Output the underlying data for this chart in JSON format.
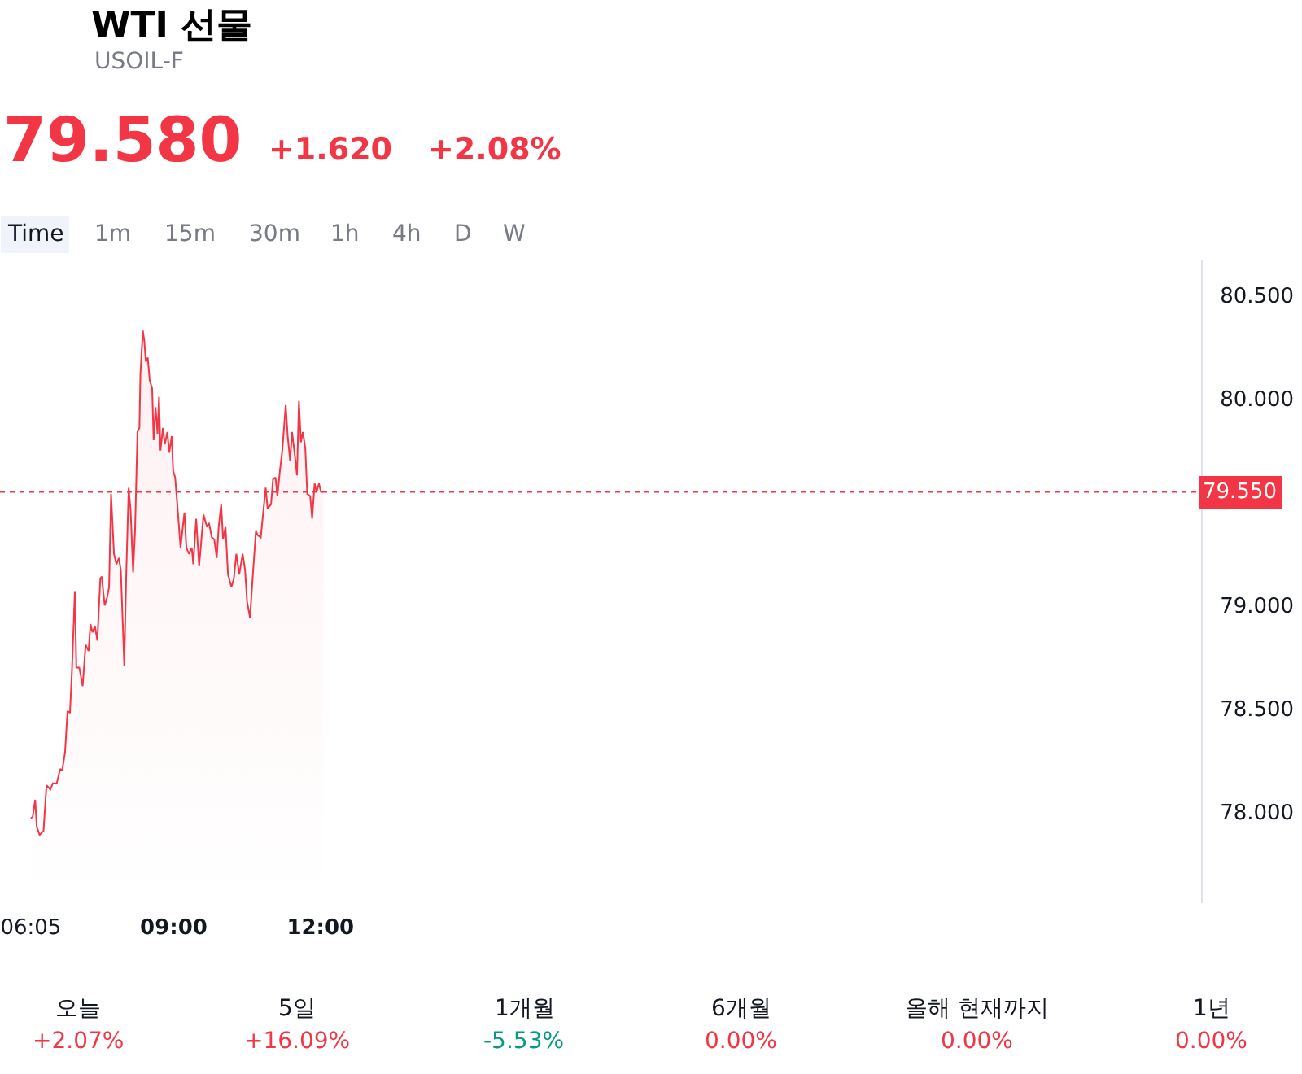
{
  "chart_data": {
    "type": "area",
    "title": "WTI 선물",
    "subtitle": "USOIL-F",
    "annotations": [
      "79.580",
      "+1.620",
      "+2.08%",
      "Time",
      "1m",
      "15m",
      "30m",
      "1h",
      "4h",
      "D",
      "W",
      "오늘",
      "5일",
      "1개월",
      "6개월",
      "올해 현재까지",
      "1년",
      "+2.07%",
      "+16.09%",
      "-5.53%",
      "0.00%",
      "0.00%",
      "0.00%"
    ],
    "x": [
      6.08,
      6.12,
      6.17,
      6.2,
      6.26,
      6.34,
      6.4,
      6.48,
      6.53,
      6.61,
      6.68,
      6.72,
      6.78,
      6.83,
      6.88,
      6.92,
      6.98,
      7.01,
      7.07,
      7.11,
      7.14,
      7.2,
      7.26,
      7.3,
      7.34,
      7.39,
      7.44,
      7.5,
      7.53,
      7.59,
      7.64,
      7.68,
      7.72,
      7.78,
      7.83,
      7.88,
      7.92,
      7.99,
      8.03,
      8.08,
      8.12,
      8.17,
      8.21,
      8.26,
      8.3,
      8.32,
      8.37,
      8.4,
      8.43,
      8.47,
      8.51,
      8.56,
      8.59,
      8.63,
      8.67,
      8.7,
      8.73,
      8.78,
      8.82,
      8.87,
      8.91,
      8.96,
      8.99,
      9.03,
      9.09,
      9.14,
      9.22,
      9.26,
      9.31,
      9.37,
      9.4,
      9.46,
      9.52,
      9.61,
      9.68,
      9.72,
      9.78,
      9.83,
      9.88,
      9.92,
      9.97,
      10.01,
      10.06,
      10.11,
      10.18,
      10.23,
      10.28,
      10.34,
      10.41,
      10.46,
      10.5,
      10.56,
      10.61,
      10.68,
      10.72,
      10.78,
      10.83,
      10.88,
      10.92,
      10.99,
      11.03,
      11.08,
      11.12,
      11.17,
      11.22,
      11.29,
      11.33,
      11.38,
      11.42,
      11.48,
      11.52,
      11.56,
      11.6,
      11.64,
      11.69,
      11.73,
      11.79,
      11.83,
      11.88,
      11.92,
      11.97,
      12.01,
      12.06
    ],
    "series": [
      {
        "color": "#f23645",
        "values": [
          77.97,
          77.98,
          78.06,
          77.93,
          77.89,
          77.91,
          78.13,
          78.11,
          78.14,
          78.14,
          78.21,
          78.2,
          78.29,
          78.49,
          78.48,
          78.68,
          79.07,
          78.7,
          78.7,
          78.65,
          78.61,
          78.81,
          78.78,
          78.91,
          78.87,
          78.9,
          78.83,
          79.13,
          79.14,
          79.0,
          79.04,
          79.09,
          79.54,
          79.25,
          79.2,
          79.23,
          79.17,
          78.71,
          79.15,
          79.57,
          79.46,
          79.16,
          79.36,
          79.84,
          79.86,
          80.12,
          80.33,
          80.28,
          80.18,
          80.2,
          80.09,
          80.05,
          79.8,
          79.96,
          79.83,
          80.01,
          79.75,
          79.86,
          79.78,
          79.84,
          79.74,
          79.82,
          79.65,
          79.62,
          79.44,
          79.28,
          79.45,
          79.28,
          79.25,
          79.28,
          79.2,
          79.42,
          79.19,
          79.44,
          79.38,
          79.4,
          79.33,
          79.32,
          79.23,
          79.38,
          79.49,
          79.32,
          79.38,
          79.15,
          79.09,
          79.13,
          79.25,
          79.15,
          79.25,
          79.17,
          79.02,
          78.94,
          79.12,
          79.36,
          79.34,
          79.33,
          79.45,
          79.57,
          79.47,
          79.49,
          79.61,
          79.62,
          79.53,
          79.65,
          79.75,
          79.97,
          79.82,
          79.7,
          79.84,
          79.72,
          79.63,
          79.99,
          79.79,
          79.84,
          79.76,
          79.54,
          79.53,
          79.42,
          79.59,
          79.55,
          79.59,
          79.55,
          79.55
        ]
      }
    ],
    "xlim": [
      5.45,
      30
    ],
    "xticks": [
      {
        "value": 6.08,
        "label": "06:05"
      },
      {
        "value": 9,
        "label": "09:00"
      },
      {
        "value": 12,
        "label": "12:00"
      }
    ],
    "ylim": [
      77.56,
      80.67
    ],
    "yticks": [
      {
        "value": 78,
        "label": "78.000"
      },
      {
        "value": 78.5,
        "label": "78.500"
      },
      {
        "value": 79,
        "label": "79.000"
      },
      {
        "value": 80,
        "label": "80.000"
      },
      {
        "value": 80.5,
        "label": "80.500"
      }
    ],
    "ref_lines": [
      {
        "axis": "y",
        "value": 79.55,
        "label": "79.550",
        "color": "#f23645",
        "line_style": "dotted"
      }
    ]
  }
}
